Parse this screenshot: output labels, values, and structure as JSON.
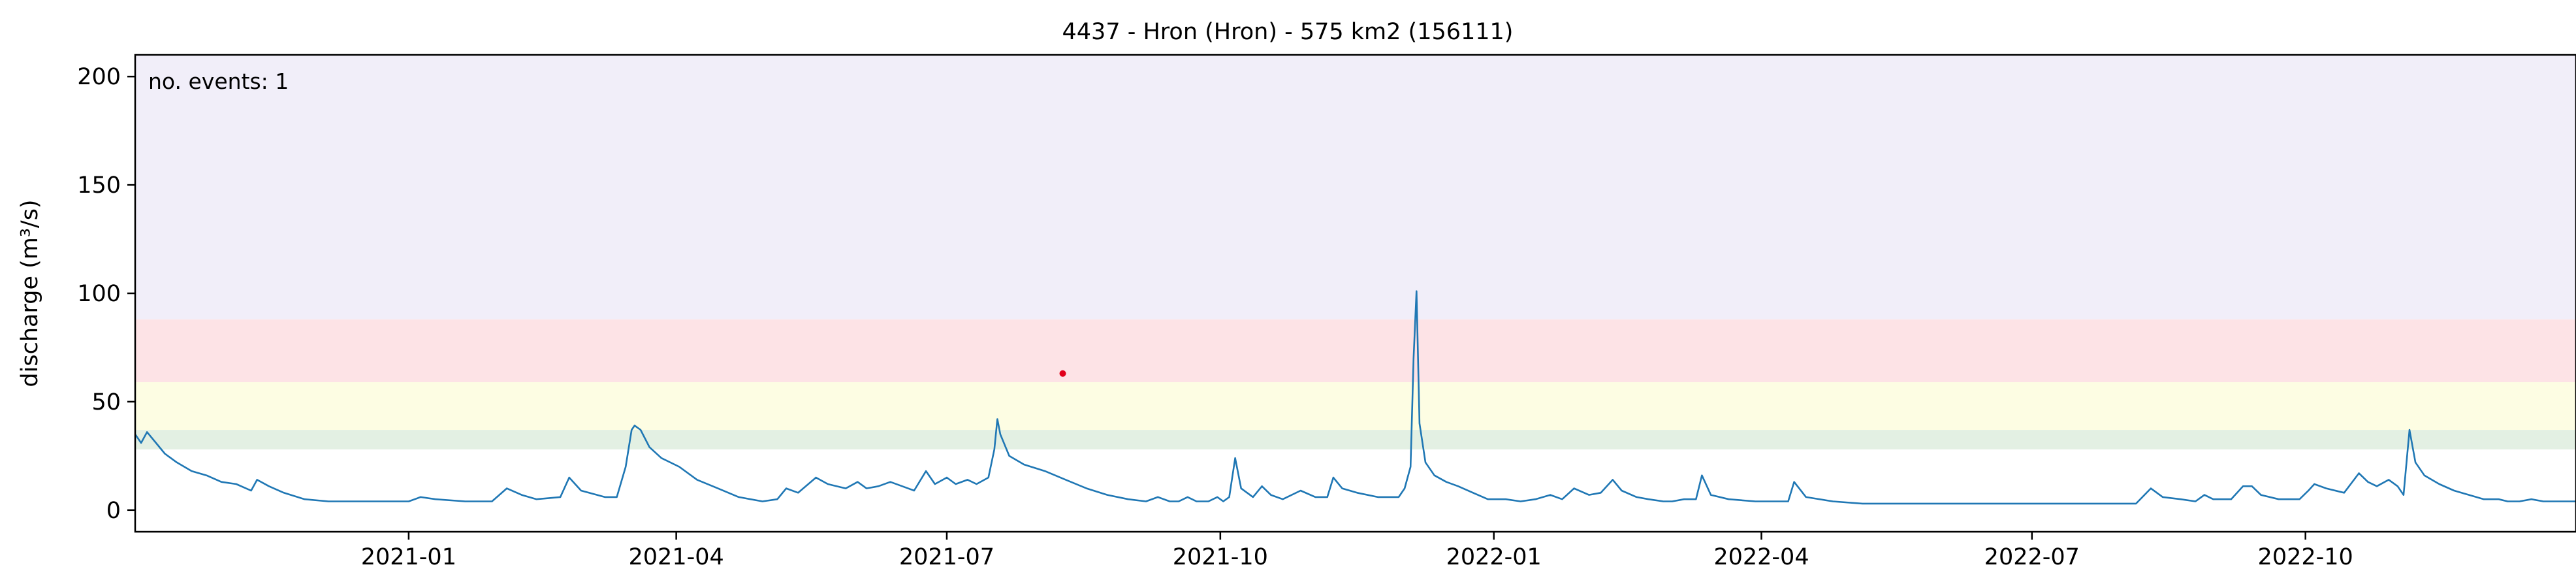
{
  "chart_data": {
    "type": "line",
    "title": "4437 - Hron (Hron) - 575 km2 (156111)",
    "ylabel": "discharge (m³/s)",
    "xlabel": "",
    "annotation": "no. events: 1",
    "annotation_color": "#e0001b",
    "line_color": "#1f77b4",
    "event_marker_color": "#e0001b",
    "grid": false,
    "xlim": [
      "2020-10-01",
      "2022-12-31"
    ],
    "ylim": [
      -10,
      210
    ],
    "yticks": [
      0,
      50,
      100,
      150,
      200
    ],
    "xticks": [
      {
        "date": "2021-01-01",
        "label": "2021-01"
      },
      {
        "date": "2021-04-01",
        "label": "2021-04"
      },
      {
        "date": "2021-07-01",
        "label": "2021-07"
      },
      {
        "date": "2021-10-01",
        "label": "2021-10"
      },
      {
        "date": "2022-01-01",
        "label": "2022-01"
      },
      {
        "date": "2022-04-01",
        "label": "2022-04"
      },
      {
        "date": "2022-07-01",
        "label": "2022-07"
      },
      {
        "date": "2022-10-01",
        "label": "2022-10"
      }
    ],
    "threshold_bands": [
      {
        "from": 28,
        "to": 37,
        "color": "#e3f0e3"
      },
      {
        "from": 37,
        "to": 59,
        "color": "#fdfde3"
      },
      {
        "from": 59,
        "to": 88,
        "color": "#fde3e6"
      },
      {
        "from": 88,
        "to": 210,
        "color": "#f1eef9"
      }
    ],
    "events": [
      {
        "date": "2021-08-09",
        "value": 63
      }
    ],
    "series": [
      {
        "values": [
          [
            "2020-10-01",
            35
          ],
          [
            "2020-10-03",
            31
          ],
          [
            "2020-10-05",
            36
          ],
          [
            "2020-10-08",
            31
          ],
          [
            "2020-10-11",
            26
          ],
          [
            "2020-10-15",
            22
          ],
          [
            "2020-10-20",
            18
          ],
          [
            "2020-10-25",
            16
          ],
          [
            "2020-10-30",
            13
          ],
          [
            "2020-11-04",
            12
          ],
          [
            "2020-11-09",
            9
          ],
          [
            "2020-11-11",
            14
          ],
          [
            "2020-11-15",
            11
          ],
          [
            "2020-11-20",
            8
          ],
          [
            "2020-11-27",
            5
          ],
          [
            "2020-12-05",
            4
          ],
          [
            "2020-12-20",
            4
          ],
          [
            "2021-01-01",
            4
          ],
          [
            "2021-01-05",
            6
          ],
          [
            "2021-01-10",
            5
          ],
          [
            "2021-01-20",
            4
          ],
          [
            "2021-01-29",
            4
          ],
          [
            "2021-02-03",
            10
          ],
          [
            "2021-02-08",
            7
          ],
          [
            "2021-02-13",
            5
          ],
          [
            "2021-02-21",
            6
          ],
          [
            "2021-02-24",
            15
          ],
          [
            "2021-02-28",
            9
          ],
          [
            "2021-03-08",
            6
          ],
          [
            "2021-03-12",
            6
          ],
          [
            "2021-03-15",
            20
          ],
          [
            "2021-03-17",
            37
          ],
          [
            "2021-03-18",
            39
          ],
          [
            "2021-03-20",
            37
          ],
          [
            "2021-03-23",
            29
          ],
          [
            "2021-03-27",
            24
          ],
          [
            "2021-04-02",
            20
          ],
          [
            "2021-04-08",
            14
          ],
          [
            "2021-04-15",
            10
          ],
          [
            "2021-04-22",
            6
          ],
          [
            "2021-04-30",
            4
          ],
          [
            "2021-05-05",
            5
          ],
          [
            "2021-05-08",
            10
          ],
          [
            "2021-05-12",
            8
          ],
          [
            "2021-05-18",
            15
          ],
          [
            "2021-05-22",
            12
          ],
          [
            "2021-05-28",
            10
          ],
          [
            "2021-06-01",
            13
          ],
          [
            "2021-06-04",
            10
          ],
          [
            "2021-06-08",
            11
          ],
          [
            "2021-06-12",
            13
          ],
          [
            "2021-06-16",
            11
          ],
          [
            "2021-06-20",
            9
          ],
          [
            "2021-06-24",
            18
          ],
          [
            "2021-06-27",
            12
          ],
          [
            "2021-07-01",
            15
          ],
          [
            "2021-07-04",
            12
          ],
          [
            "2021-07-08",
            14
          ],
          [
            "2021-07-11",
            12
          ],
          [
            "2021-07-15",
            15
          ],
          [
            "2021-07-17",
            28
          ],
          [
            "2021-07-18",
            42
          ],
          [
            "2021-07-19",
            35
          ],
          [
            "2021-07-22",
            25
          ],
          [
            "2021-07-27",
            21
          ],
          [
            "2021-08-03",
            18
          ],
          [
            "2021-08-10",
            14
          ],
          [
            "2021-08-17",
            10
          ],
          [
            "2021-08-24",
            7
          ],
          [
            "2021-08-31",
            5
          ],
          [
            "2021-09-06",
            4
          ],
          [
            "2021-09-10",
            6
          ],
          [
            "2021-09-14",
            4
          ],
          [
            "2021-09-17",
            4
          ],
          [
            "2021-09-20",
            6
          ],
          [
            "2021-09-23",
            4
          ],
          [
            "2021-09-27",
            4
          ],
          [
            "2021-09-30",
            6
          ],
          [
            "2021-10-02",
            4
          ],
          [
            "2021-10-04",
            6
          ],
          [
            "2021-10-06",
            24
          ],
          [
            "2021-10-08",
            10
          ],
          [
            "2021-10-12",
            6
          ],
          [
            "2021-10-15",
            11
          ],
          [
            "2021-10-18",
            7
          ],
          [
            "2021-10-22",
            5
          ],
          [
            "2021-10-28",
            9
          ],
          [
            "2021-11-02",
            6
          ],
          [
            "2021-11-06",
            6
          ],
          [
            "2021-11-08",
            15
          ],
          [
            "2021-11-11",
            10
          ],
          [
            "2021-11-16",
            8
          ],
          [
            "2021-11-23",
            6
          ],
          [
            "2021-11-30",
            6
          ],
          [
            "2021-12-02",
            10
          ],
          [
            "2021-12-04",
            20
          ],
          [
            "2021-12-05",
            70
          ],
          [
            "2021-12-06",
            101
          ],
          [
            "2021-12-07",
            40
          ],
          [
            "2021-12-09",
            22
          ],
          [
            "2021-12-12",
            16
          ],
          [
            "2021-12-16",
            13
          ],
          [
            "2021-12-20",
            11
          ],
          [
            "2021-12-25",
            8
          ],
          [
            "2021-12-30",
            5
          ],
          [
            "2022-01-05",
            5
          ],
          [
            "2022-01-10",
            4
          ],
          [
            "2022-01-15",
            5
          ],
          [
            "2022-01-20",
            7
          ],
          [
            "2022-01-24",
            5
          ],
          [
            "2022-01-28",
            10
          ],
          [
            "2022-02-02",
            7
          ],
          [
            "2022-02-06",
            8
          ],
          [
            "2022-02-10",
            14
          ],
          [
            "2022-02-13",
            9
          ],
          [
            "2022-02-18",
            6
          ],
          [
            "2022-02-22",
            5
          ],
          [
            "2022-02-27",
            4
          ],
          [
            "2022-03-02",
            4
          ],
          [
            "2022-03-06",
            5
          ],
          [
            "2022-03-10",
            5
          ],
          [
            "2022-03-12",
            16
          ],
          [
            "2022-03-15",
            7
          ],
          [
            "2022-03-21",
            5
          ],
          [
            "2022-03-30",
            4
          ],
          [
            "2022-04-05",
            4
          ],
          [
            "2022-04-10",
            4
          ],
          [
            "2022-04-12",
            13
          ],
          [
            "2022-04-16",
            6
          ],
          [
            "2022-04-25",
            4
          ],
          [
            "2022-05-05",
            3
          ],
          [
            "2022-05-15",
            3
          ],
          [
            "2022-05-25",
            3
          ],
          [
            "2022-06-05",
            3
          ],
          [
            "2022-06-15",
            3
          ],
          [
            "2022-06-25",
            3
          ],
          [
            "2022-07-05",
            3
          ],
          [
            "2022-07-15",
            3
          ],
          [
            "2022-07-25",
            3
          ],
          [
            "2022-08-05",
            3
          ],
          [
            "2022-08-10",
            10
          ],
          [
            "2022-08-14",
            6
          ],
          [
            "2022-08-20",
            5
          ],
          [
            "2022-08-25",
            4
          ],
          [
            "2022-08-28",
            7
          ],
          [
            "2022-08-31",
            5
          ],
          [
            "2022-09-06",
            5
          ],
          [
            "2022-09-10",
            11
          ],
          [
            "2022-09-13",
            11
          ],
          [
            "2022-09-16",
            7
          ],
          [
            "2022-09-22",
            5
          ],
          [
            "2022-09-29",
            5
          ],
          [
            "2022-10-02",
            9
          ],
          [
            "2022-10-04",
            12
          ],
          [
            "2022-10-08",
            10
          ],
          [
            "2022-10-14",
            8
          ],
          [
            "2022-10-19",
            17
          ],
          [
            "2022-10-22",
            13
          ],
          [
            "2022-10-25",
            11
          ],
          [
            "2022-10-29",
            14
          ],
          [
            "2022-11-01",
            11
          ],
          [
            "2022-11-03",
            7
          ],
          [
            "2022-11-05",
            37
          ],
          [
            "2022-11-07",
            22
          ],
          [
            "2022-11-10",
            16
          ],
          [
            "2022-11-15",
            12
          ],
          [
            "2022-11-20",
            9
          ],
          [
            "2022-11-25",
            7
          ],
          [
            "2022-11-30",
            5
          ],
          [
            "2022-12-05",
            5
          ],
          [
            "2022-12-08",
            4
          ],
          [
            "2022-12-12",
            4
          ],
          [
            "2022-12-16",
            5
          ],
          [
            "2022-12-20",
            4
          ],
          [
            "2022-12-25",
            4
          ],
          [
            "2022-12-31",
            4
          ]
        ]
      }
    ]
  }
}
